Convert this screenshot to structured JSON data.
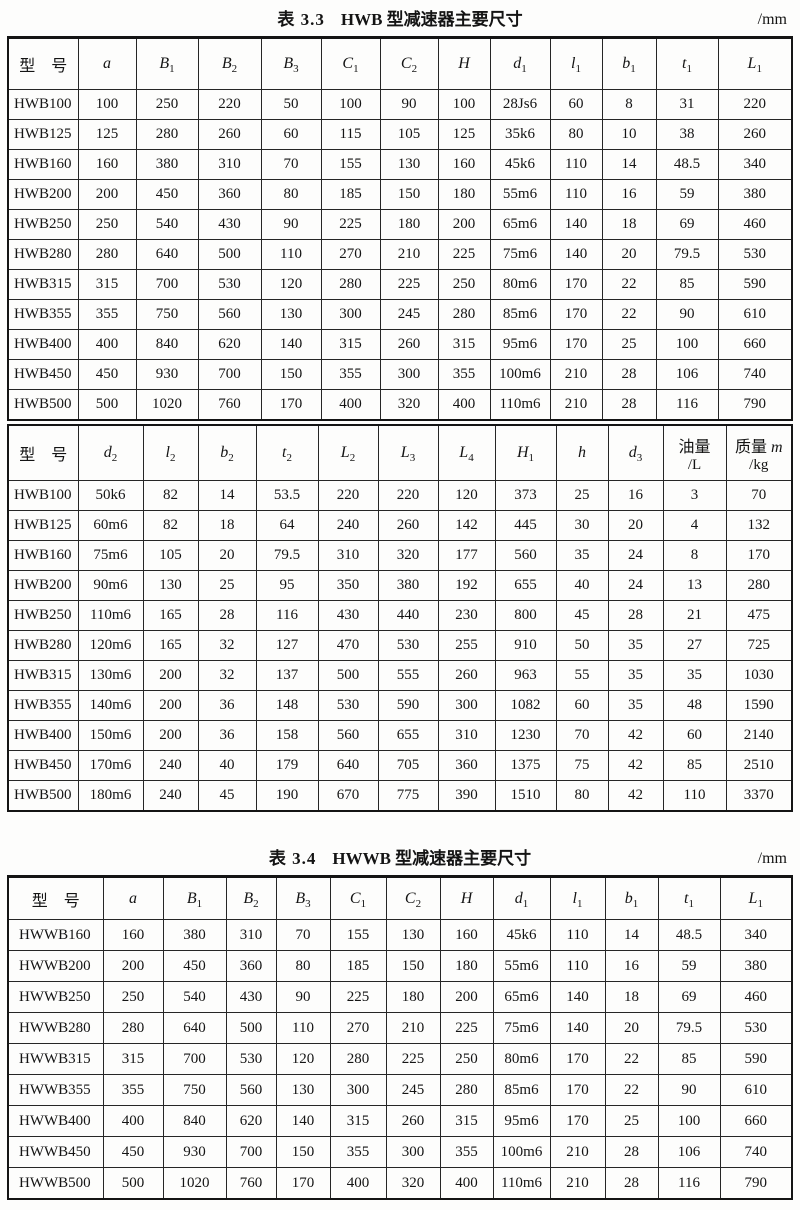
{
  "tables": [
    {
      "caption": {
        "label": "表 3.3",
        "title": "HWB 型减速器主要尺寸",
        "unit": "/mm"
      },
      "sections": [
        {
          "headers": [
            {
              "t": "型　号"
            },
            {
              "t": "a",
              "i": 1
            },
            {
              "t": "B",
              "s": "1",
              "i": 1
            },
            {
              "t": "B",
              "s": "2",
              "i": 1
            },
            {
              "t": "B",
              "s": "3",
              "i": 1
            },
            {
              "t": "C",
              "s": "1",
              "i": 1
            },
            {
              "t": "C",
              "s": "2",
              "i": 1
            },
            {
              "t": "H",
              "i": 1
            },
            {
              "t": "d",
              "s": "1",
              "i": 1
            },
            {
              "t": "l",
              "s": "1",
              "i": 1
            },
            {
              "t": "b",
              "s": "1",
              "i": 1
            },
            {
              "t": "t",
              "s": "1",
              "i": 1
            },
            {
              "t": "L",
              "s": "1",
              "i": 1
            }
          ],
          "rows": [
            [
              "HWB100",
              "100",
              "250",
              "220",
              "50",
              "100",
              "90",
              "100",
              "28Js6",
              "60",
              "8",
              "31",
              "220"
            ],
            [
              "HWB125",
              "125",
              "280",
              "260",
              "60",
              "115",
              "105",
              "125",
              "35k6",
              "80",
              "10",
              "38",
              "260"
            ],
            [
              "HWB160",
              "160",
              "380",
              "310",
              "70",
              "155",
              "130",
              "160",
              "45k6",
              "110",
              "14",
              "48.5",
              "340"
            ],
            [
              "HWB200",
              "200",
              "450",
              "360",
              "80",
              "185",
              "150",
              "180",
              "55m6",
              "110",
              "16",
              "59",
              "380"
            ],
            [
              "HWB250",
              "250",
              "540",
              "430",
              "90",
              "225",
              "180",
              "200",
              "65m6",
              "140",
              "18",
              "69",
              "460"
            ],
            [
              "HWB280",
              "280",
              "640",
              "500",
              "110",
              "270",
              "210",
              "225",
              "75m6",
              "140",
              "20",
              "79.5",
              "530"
            ],
            [
              "HWB315",
              "315",
              "700",
              "530",
              "120",
              "280",
              "225",
              "250",
              "80m6",
              "170",
              "22",
              "85",
              "590"
            ],
            [
              "HWB355",
              "355",
              "750",
              "560",
              "130",
              "300",
              "245",
              "280",
              "85m6",
              "170",
              "22",
              "90",
              "610"
            ],
            [
              "HWB400",
              "400",
              "840",
              "620",
              "140",
              "315",
              "260",
              "315",
              "95m6",
              "170",
              "25",
              "100",
              "660"
            ],
            [
              "HWB450",
              "450",
              "930",
              "700",
              "150",
              "355",
              "300",
              "355",
              "100m6",
              "210",
              "28",
              "106",
              "740"
            ],
            [
              "HWB500",
              "500",
              "1020",
              "760",
              "170",
              "400",
              "320",
              "400",
              "110m6",
              "210",
              "28",
              "116",
              "790"
            ]
          ]
        },
        {
          "headers": [
            {
              "t": "型　号"
            },
            {
              "t": "d",
              "s": "2",
              "i": 1
            },
            {
              "t": "l",
              "s": "2",
              "i": 1
            },
            {
              "t": "b",
              "s": "2",
              "i": 1
            },
            {
              "t": "t",
              "s": "2",
              "i": 1
            },
            {
              "t": "L",
              "s": "2",
              "i": 1
            },
            {
              "t": "L",
              "s": "3",
              "i": 1
            },
            {
              "t": "L",
              "s": "4",
              "i": 1
            },
            {
              "t": "H",
              "s": "1",
              "i": 1
            },
            {
              "t": "h",
              "i": 1
            },
            {
              "t": "d",
              "s": "3",
              "i": 1
            },
            {
              "t": "油量",
              "l2": "/L"
            },
            {
              "t": "质量 ",
              "em": "m",
              "l2": "/kg"
            }
          ],
          "rows": [
            [
              "HWB100",
              "50k6",
              "82",
              "14",
              "53.5",
              "220",
              "220",
              "120",
              "373",
              "25",
              "16",
              "3",
              "70"
            ],
            [
              "HWB125",
              "60m6",
              "82",
              "18",
              "64",
              "240",
              "260",
              "142",
              "445",
              "30",
              "20",
              "4",
              "132"
            ],
            [
              "HWB160",
              "75m6",
              "105",
              "20",
              "79.5",
              "310",
              "320",
              "177",
              "560",
              "35",
              "24",
              "8",
              "170"
            ],
            [
              "HWB200",
              "90m6",
              "130",
              "25",
              "95",
              "350",
              "380",
              "192",
              "655",
              "40",
              "24",
              "13",
              "280"
            ],
            [
              "HWB250",
              "110m6",
              "165",
              "28",
              "116",
              "430",
              "440",
              "230",
              "800",
              "45",
              "28",
              "21",
              "475"
            ],
            [
              "HWB280",
              "120m6",
              "165",
              "32",
              "127",
              "470",
              "530",
              "255",
              "910",
              "50",
              "35",
              "27",
              "725"
            ],
            [
              "HWB315",
              "130m6",
              "200",
              "32",
              "137",
              "500",
              "555",
              "260",
              "963",
              "55",
              "35",
              "35",
              "1030"
            ],
            [
              "HWB355",
              "140m6",
              "200",
              "36",
              "148",
              "530",
              "590",
              "300",
              "1082",
              "60",
              "35",
              "48",
              "1590"
            ],
            [
              "HWB400",
              "150m6",
              "200",
              "36",
              "158",
              "560",
              "655",
              "310",
              "1230",
              "70",
              "42",
              "60",
              "2140"
            ],
            [
              "HWB450",
              "170m6",
              "240",
              "40",
              "179",
              "640",
              "705",
              "360",
              "1375",
              "75",
              "42",
              "85",
              "2510"
            ],
            [
              "HWB500",
              "180m6",
              "240",
              "45",
              "190",
              "670",
              "775",
              "390",
              "1510",
              "80",
              "42",
              "110",
              "3370"
            ]
          ]
        }
      ]
    },
    {
      "caption": {
        "label": "表 3.4",
        "title": "HWWB 型减速器主要尺寸",
        "unit": "/mm"
      },
      "sections": [
        {
          "headers": [
            {
              "t": "型　号"
            },
            {
              "t": "a",
              "i": 1
            },
            {
              "t": "B",
              "s": "1",
              "i": 1
            },
            {
              "t": "B",
              "s": "2",
              "i": 1
            },
            {
              "t": "B",
              "s": "3",
              "i": 1
            },
            {
              "t": "C",
              "s": "1",
              "i": 1
            },
            {
              "t": "C",
              "s": "2",
              "i": 1
            },
            {
              "t": "H",
              "i": 1
            },
            {
              "t": "d",
              "s": "1",
              "i": 1
            },
            {
              "t": "l",
              "s": "1",
              "i": 1
            },
            {
              "t": "b",
              "s": "1",
              "i": 1
            },
            {
              "t": "t",
              "s": "1",
              "i": 1
            },
            {
              "t": "L",
              "s": "1",
              "i": 1
            }
          ],
          "rows": [
            [
              "HWWB160",
              "160",
              "380",
              "310",
              "70",
              "155",
              "130",
              "160",
              "45k6",
              "110",
              "14",
              "48.5",
              "340"
            ],
            [
              "HWWB200",
              "200",
              "450",
              "360",
              "80",
              "185",
              "150",
              "180",
              "55m6",
              "110",
              "16",
              "59",
              "380"
            ],
            [
              "HWWB250",
              "250",
              "540",
              "430",
              "90",
              "225",
              "180",
              "200",
              "65m6",
              "140",
              "18",
              "69",
              "460"
            ],
            [
              "HWWB280",
              "280",
              "640",
              "500",
              "110",
              "270",
              "210",
              "225",
              "75m6",
              "140",
              "20",
              "79.5",
              "530"
            ],
            [
              "HWWB315",
              "315",
              "700",
              "530",
              "120",
              "280",
              "225",
              "250",
              "80m6",
              "170",
              "22",
              "85",
              "590"
            ],
            [
              "HWWB355",
              "355",
              "750",
              "560",
              "130",
              "300",
              "245",
              "280",
              "85m6",
              "170",
              "22",
              "90",
              "610"
            ],
            [
              "HWWB400",
              "400",
              "840",
              "620",
              "140",
              "315",
              "260",
              "315",
              "95m6",
              "170",
              "25",
              "100",
              "660"
            ],
            [
              "HWWB450",
              "450",
              "930",
              "700",
              "150",
              "355",
              "300",
              "355",
              "100m6",
              "210",
              "28",
              "106",
              "740"
            ],
            [
              "HWWB500",
              "500",
              "1020",
              "760",
              "170",
              "400",
              "320",
              "400",
              "110m6",
              "210",
              "28",
              "116",
              "790"
            ]
          ]
        }
      ]
    }
  ]
}
